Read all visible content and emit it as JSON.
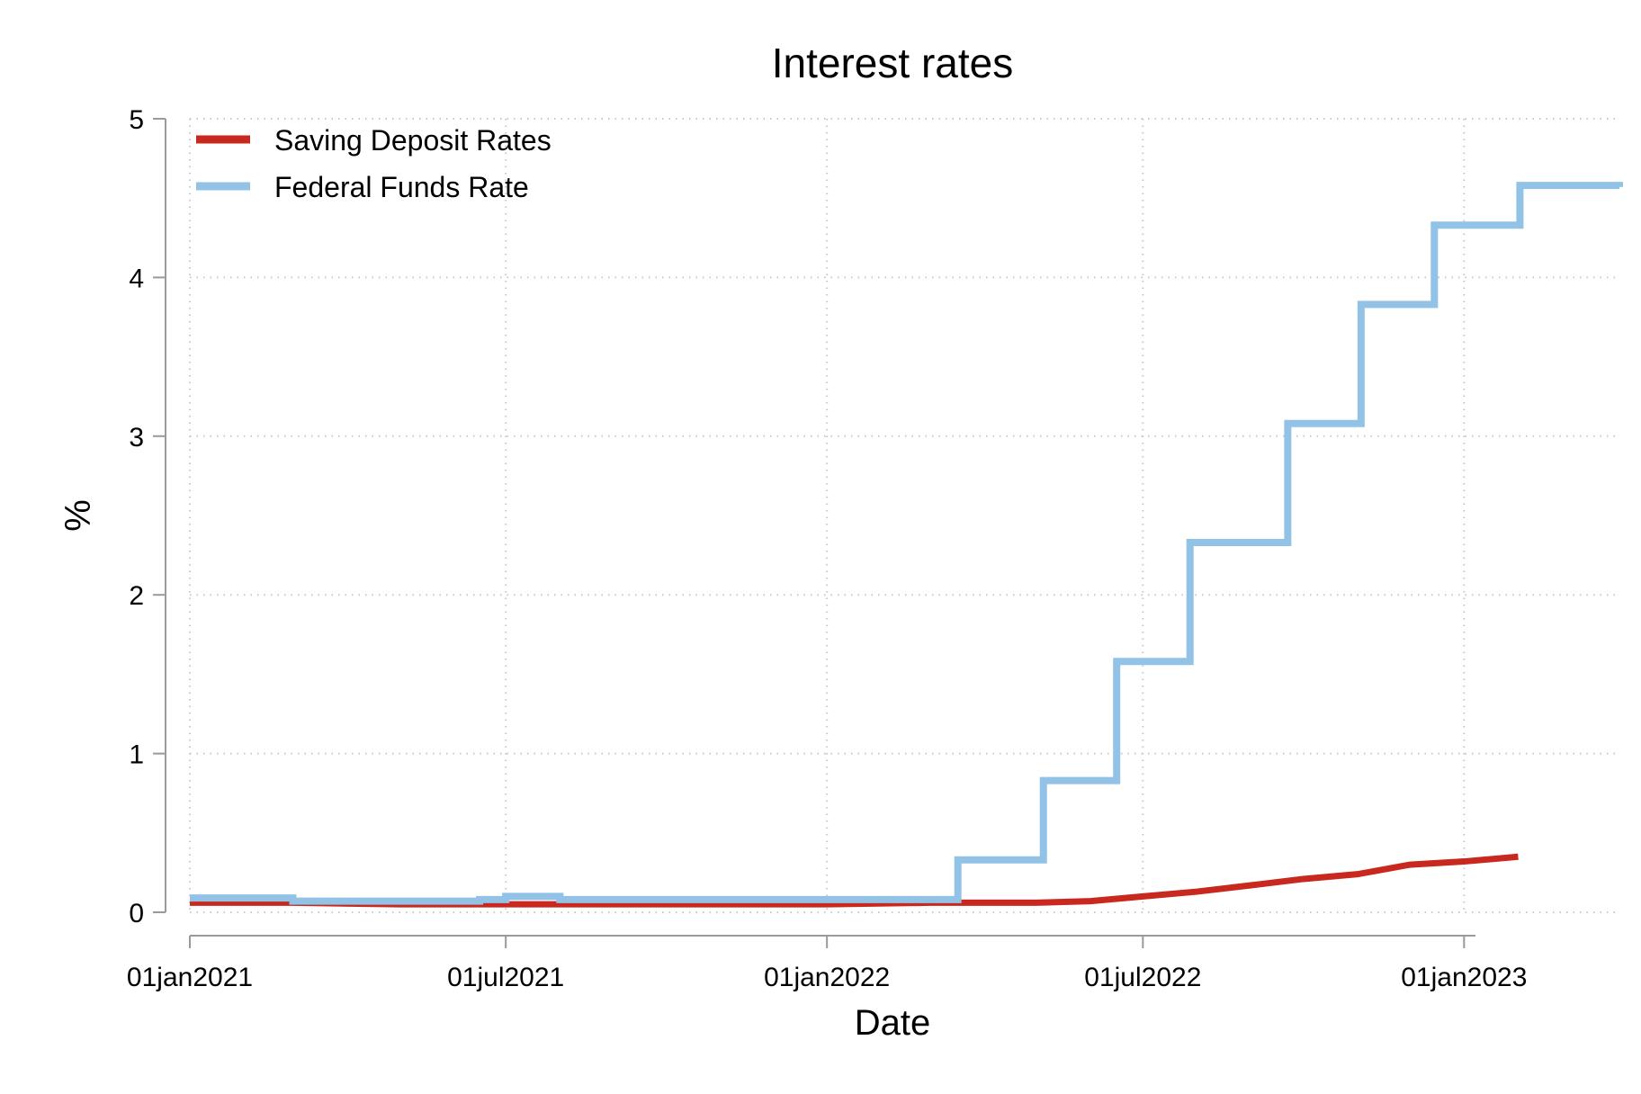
{
  "chart_data": {
    "type": "line",
    "title": "Interest rates",
    "xlabel": "Date",
    "ylabel": "%",
    "x_axis_type": "date",
    "xlim": [
      "2021-01-01",
      "2023-03-31"
    ],
    "ylim": [
      0,
      5
    ],
    "x_ticks": [
      "2021-01-01",
      "2021-07-01",
      "2022-01-01",
      "2022-07-01",
      "2023-01-01"
    ],
    "x_tick_labels": [
      "01jan2021",
      "01jul2021",
      "01jan2022",
      "01jul2022",
      "01jan2023"
    ],
    "y_ticks": [
      0,
      1,
      2,
      3,
      4,
      5
    ],
    "y_tick_labels": [
      "0",
      "1",
      "2",
      "3",
      "4",
      "5"
    ],
    "grid": true,
    "legend_position": "top-left",
    "series": [
      {
        "name": "Saving Deposit Rates",
        "color": "#c8281e",
        "step": false,
        "x": [
          "2021-01-01",
          "2021-03-01",
          "2021-05-01",
          "2021-06-01",
          "2021-07-01",
          "2021-09-01",
          "2021-11-01",
          "2022-01-01",
          "2022-03-01",
          "2022-04-01",
          "2022-05-01",
          "2022-06-01",
          "2022-07-01",
          "2022-08-01",
          "2022-09-01",
          "2022-10-01",
          "2022-11-01",
          "2022-12-01",
          "2023-01-01",
          "2023-02-01"
        ],
        "y": [
          0.06,
          0.06,
          0.05,
          0.05,
          0.05,
          0.05,
          0.05,
          0.05,
          0.06,
          0.06,
          0.06,
          0.07,
          0.1,
          0.13,
          0.17,
          0.21,
          0.24,
          0.3,
          0.32,
          0.35
        ]
      },
      {
        "name": "Federal Funds Rate",
        "color": "#92c2e6",
        "step": true,
        "x": [
          "2021-01-01",
          "2021-03-01",
          "2021-04-01",
          "2021-06-16",
          "2021-07-01",
          "2021-08-01",
          "2022-03-17",
          "2022-05-05",
          "2022-06-16",
          "2022-07-28",
          "2022-09-22",
          "2022-11-03",
          "2022-12-15",
          "2023-02-02",
          "2023-03-31"
        ],
        "y": [
          0.09,
          0.07,
          0.07,
          0.08,
          0.1,
          0.08,
          0.33,
          0.83,
          1.58,
          2.33,
          3.08,
          3.83,
          4.33,
          4.58,
          4.57
        ]
      }
    ]
  }
}
